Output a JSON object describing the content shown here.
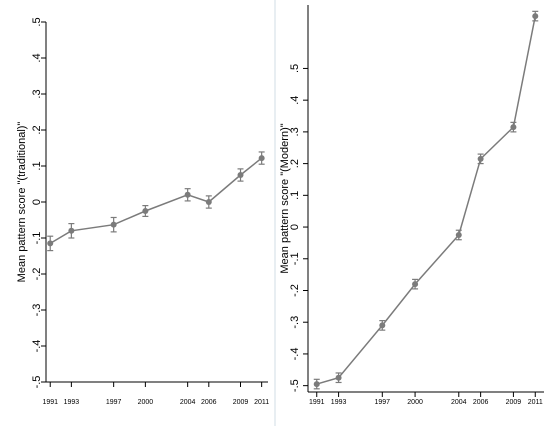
{
  "colors": {
    "series": "#7b7b7b",
    "axis": "#000000",
    "frame_background": "#e8eef2",
    "plot_background": "#ffffff"
  },
  "chart_data": [
    {
      "type": "line",
      "title": "",
      "xlabel": "",
      "ylabel": "Mean pattern score \"(traditional)\"",
      "x": [
        1991,
        1993,
        1997,
        2000,
        2004,
        2006,
        2009,
        2011
      ],
      "x_ticks": [
        "1991",
        "1993",
        "1997",
        "2000",
        "2004",
        "2006",
        "2009",
        "2011"
      ],
      "y_ticks": [
        ".5",
        ".4",
        ".3",
        ".2",
        ".1",
        "0",
        "-.1",
        "-.2",
        "-.3",
        "-.4",
        "-.5"
      ],
      "ylim": [
        -0.5,
        0.5
      ],
      "grid": false,
      "series": [
        {
          "values": [
            -0.115,
            -0.08,
            -0.063,
            -0.025,
            0.02,
            0.0,
            0.075,
            0.122
          ],
          "ci_low": [
            -0.135,
            -0.1,
            -0.083,
            -0.04,
            0.003,
            -0.017,
            0.058,
            0.105
          ],
          "ci_high": [
            -0.095,
            -0.06,
            -0.043,
            -0.01,
            0.037,
            0.017,
            0.092,
            0.139
          ]
        }
      ]
    },
    {
      "type": "line",
      "title": "",
      "xlabel": "",
      "ylabel": "Mean pattern score \"(Modern)\"",
      "x": [
        1991,
        1993,
        1997,
        2000,
        2004,
        2006,
        2009,
        2011
      ],
      "x_ticks": [
        "1991",
        "1993",
        "1997",
        "2000",
        "2004",
        "2006",
        "2009",
        "2011"
      ],
      "y_ticks": [
        ".5",
        ".4",
        ".3",
        ".2",
        ".1",
        "0",
        "-.1",
        "-.2",
        "-.3",
        "-.4",
        "-.5"
      ],
      "ylim": [
        -0.52,
        0.7
      ],
      "grid": false,
      "series": [
        {
          "values": [
            -0.495,
            -0.475,
            -0.31,
            -0.18,
            -0.025,
            0.215,
            0.315,
            0.665
          ],
          "ci_low": [
            -0.51,
            -0.49,
            -0.325,
            -0.195,
            -0.04,
            0.2,
            0.3,
            0.65
          ],
          "ci_high": [
            -0.48,
            -0.46,
            -0.295,
            -0.165,
            -0.01,
            0.23,
            0.33,
            0.68
          ]
        }
      ]
    }
  ]
}
